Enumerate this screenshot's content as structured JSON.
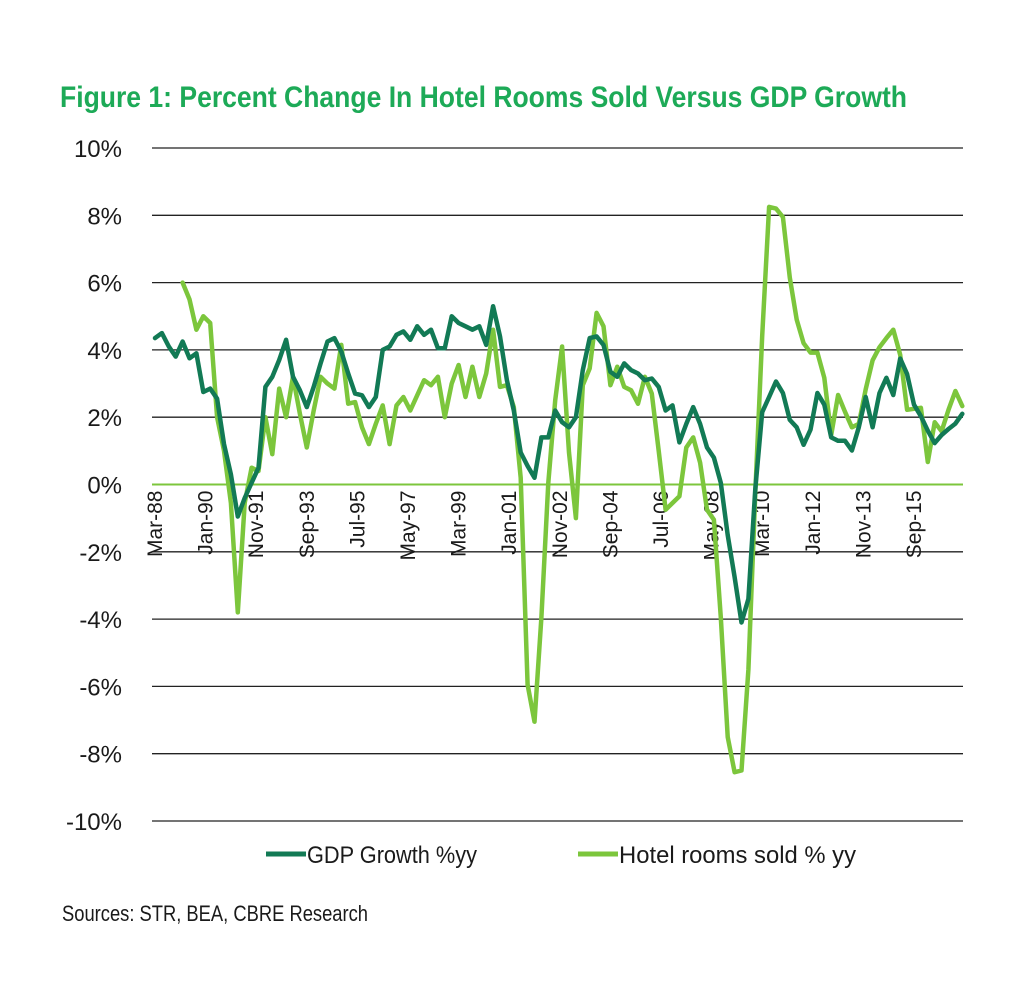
{
  "chart_data": {
    "type": "line",
    "title": "Figure 1: Percent Change In Hotel Rooms Sold Versus GDP Growth",
    "xlabel": "",
    "ylabel": "",
    "ylim": [
      -10,
      10
    ],
    "y_ticks": [
      "10%",
      "8%",
      "6%",
      "4%",
      "2%",
      "0%",
      "-2%",
      "-4%",
      "-6%",
      "-8%",
      "-10%"
    ],
    "y_tick_values": [
      10,
      8,
      6,
      4,
      2,
      0,
      -2,
      -4,
      -6,
      -8,
      -10
    ],
    "x_ticks": [
      "Mar-88",
      "Jan-90",
      "Nov-91",
      "Sep-93",
      "Jul-95",
      "May-97",
      "Mar-99",
      "Jan-01",
      "Nov-02",
      "Sep-04",
      "Jul-06",
      "May-08",
      "Mar-10",
      "Jan-12",
      "Nov-13",
      "Sep-15"
    ],
    "x_tick_dates": [
      "1988-03",
      "1990-01",
      "1991-11",
      "1993-09",
      "1995-07",
      "1997-05",
      "1999-03",
      "2001-01",
      "2002-11",
      "2004-09",
      "2006-07",
      "2008-05",
      "2010-03",
      "2012-01",
      "2013-11",
      "2015-09"
    ],
    "x_range": [
      "1988-03",
      "2017-06"
    ],
    "grid": "horizontal",
    "legend_position": "bottom",
    "colors": {
      "gdp": "#127a55",
      "hotel": "#7cc63c",
      "title": "#1daa57",
      "zero_line": "#7cc63c",
      "grid": "#222222"
    },
    "series": [
      {
        "name": "GDP Growth %yy",
        "color": "#127a55",
        "points": [
          [
            "1988-03",
            4.35
          ],
          [
            "1988-06",
            4.5
          ],
          [
            "1988-09",
            4.1
          ],
          [
            "1988-12",
            3.8
          ],
          [
            "1989-03",
            4.25
          ],
          [
            "1989-06",
            3.75
          ],
          [
            "1989-09",
            3.9
          ],
          [
            "1989-12",
            2.75
          ],
          [
            "1990-03",
            2.85
          ],
          [
            "1990-06",
            2.55
          ],
          [
            "1990-09",
            1.2
          ],
          [
            "1990-12",
            0.3
          ],
          [
            "1991-03",
            -0.95
          ],
          [
            "1991-06",
            -0.4
          ],
          [
            "1991-09",
            0.05
          ],
          [
            "1991-12",
            0.5
          ],
          [
            "1992-03",
            2.9
          ],
          [
            "1992-06",
            3.2
          ],
          [
            "1992-09",
            3.7
          ],
          [
            "1992-12",
            4.3
          ],
          [
            "1993-03",
            3.2
          ],
          [
            "1993-06",
            2.8
          ],
          [
            "1993-09",
            2.3
          ],
          [
            "1993-12",
            2.9
          ],
          [
            "1994-03",
            3.6
          ],
          [
            "1994-06",
            4.25
          ],
          [
            "1994-09",
            4.35
          ],
          [
            "1994-12",
            3.95
          ],
          [
            "1995-03",
            3.3
          ],
          [
            "1995-06",
            2.7
          ],
          [
            "1995-09",
            2.65
          ],
          [
            "1995-12",
            2.3
          ],
          [
            "1996-03",
            2.6
          ],
          [
            "1996-06",
            4.0
          ],
          [
            "1996-09",
            4.1
          ],
          [
            "1996-12",
            4.45
          ],
          [
            "1997-03",
            4.55
          ],
          [
            "1997-06",
            4.3
          ],
          [
            "1997-09",
            4.7
          ],
          [
            "1997-12",
            4.45
          ],
          [
            "1998-03",
            4.6
          ],
          [
            "1998-06",
            4.05
          ],
          [
            "1998-09",
            4.05
          ],
          [
            "1998-12",
            5.0
          ],
          [
            "1999-03",
            4.8
          ],
          [
            "1999-06",
            4.7
          ],
          [
            "1999-09",
            4.6
          ],
          [
            "1999-12",
            4.7
          ],
          [
            "2000-03",
            4.15
          ],
          [
            "2000-06",
            5.3
          ],
          [
            "2000-09",
            4.4
          ],
          [
            "2000-12",
            3.1
          ],
          [
            "2001-03",
            2.2
          ],
          [
            "2001-06",
            0.95
          ],
          [
            "2001-09",
            0.55
          ],
          [
            "2001-12",
            0.2
          ],
          [
            "2002-03",
            1.4
          ],
          [
            "2002-06",
            1.4
          ],
          [
            "2002-09",
            2.2
          ],
          [
            "2002-12",
            1.85
          ],
          [
            "2003-03",
            1.7
          ],
          [
            "2003-06",
            2.0
          ],
          [
            "2003-09",
            3.4
          ],
          [
            "2003-12",
            4.35
          ],
          [
            "2004-03",
            4.4
          ],
          [
            "2004-06",
            4.15
          ],
          [
            "2004-09",
            3.35
          ],
          [
            "2004-12",
            3.2
          ],
          [
            "2005-03",
            3.6
          ],
          [
            "2005-06",
            3.4
          ],
          [
            "2005-09",
            3.3
          ],
          [
            "2005-12",
            3.1
          ],
          [
            "2006-03",
            3.15
          ],
          [
            "2006-06",
            2.9
          ],
          [
            "2006-09",
            2.2
          ],
          [
            "2006-12",
            2.35
          ],
          [
            "2007-03",
            1.25
          ],
          [
            "2007-06",
            1.8
          ],
          [
            "2007-09",
            2.3
          ],
          [
            "2007-12",
            1.8
          ],
          [
            "2008-03",
            1.1
          ],
          [
            "2008-06",
            0.8
          ],
          [
            "2008-09",
            0.05
          ],
          [
            "2008-12",
            -1.5
          ],
          [
            "2009-03",
            -2.75
          ],
          [
            "2009-06",
            -4.1
          ],
          [
            "2009-09",
            -3.4
          ],
          [
            "2009-12",
            -0.13
          ],
          [
            "2010-03",
            2.15
          ],
          [
            "2010-06",
            2.6
          ],
          [
            "2010-09",
            3.06
          ],
          [
            "2010-12",
            2.72
          ],
          [
            "2011-03",
            1.92
          ],
          [
            "2011-06",
            1.7
          ],
          [
            "2011-09",
            1.18
          ],
          [
            "2011-12",
            1.63
          ],
          [
            "2012-03",
            2.72
          ],
          [
            "2012-06",
            2.37
          ],
          [
            "2012-09",
            1.4
          ],
          [
            "2012-12",
            1.3
          ],
          [
            "2013-03",
            1.3
          ],
          [
            "2013-06",
            1.01
          ],
          [
            "2013-09",
            1.7
          ],
          [
            "2013-12",
            2.6
          ],
          [
            "2014-03",
            1.7
          ],
          [
            "2014-06",
            2.72
          ],
          [
            "2014-09",
            3.17
          ],
          [
            "2014-12",
            2.66
          ],
          [
            "2015-03",
            3.74
          ],
          [
            "2015-06",
            3.28
          ],
          [
            "2015-09",
            2.37
          ],
          [
            "2015-12",
            2.03
          ],
          [
            "2016-03",
            1.6
          ],
          [
            "2016-06",
            1.23
          ],
          [
            "2016-09",
            1.47
          ],
          [
            "2016-12",
            1.65
          ],
          [
            "2017-03",
            1.81
          ],
          [
            "2017-06",
            2.1
          ]
        ]
      },
      {
        "name": "Hotel rooms sold % yy",
        "color": "#7cc63c",
        "points": [
          [
            "1989-03",
            6.0
          ],
          [
            "1989-06",
            5.5
          ],
          [
            "1989-09",
            4.6
          ],
          [
            "1989-12",
            5.0
          ],
          [
            "1990-03",
            4.8
          ],
          [
            "1990-06",
            2.0
          ],
          [
            "1990-09",
            1.0
          ],
          [
            "1990-12",
            -0.55
          ],
          [
            "1991-03",
            -3.8
          ],
          [
            "1991-06",
            -0.55
          ],
          [
            "1991-09",
            0.5
          ],
          [
            "1991-12",
            0.4
          ],
          [
            "1992-03",
            2.0
          ],
          [
            "1992-06",
            0.9
          ],
          [
            "1992-09",
            2.85
          ],
          [
            "1992-12",
            2.0
          ],
          [
            "1993-03",
            3.2
          ],
          [
            "1993-06",
            2.1
          ],
          [
            "1993-09",
            1.1
          ],
          [
            "1993-12",
            2.2
          ],
          [
            "1994-03",
            3.2
          ],
          [
            "1994-06",
            3.0
          ],
          [
            "1994-09",
            2.85
          ],
          [
            "1994-12",
            4.15
          ],
          [
            "1995-03",
            2.4
          ],
          [
            "1995-06",
            2.45
          ],
          [
            "1995-09",
            1.7
          ],
          [
            "1995-12",
            1.2
          ],
          [
            "1996-03",
            1.8
          ],
          [
            "1996-06",
            2.35
          ],
          [
            "1996-09",
            1.2
          ],
          [
            "1996-12",
            2.35
          ],
          [
            "1997-03",
            2.6
          ],
          [
            "1997-06",
            2.2
          ],
          [
            "1997-09",
            2.65
          ],
          [
            "1997-12",
            3.1
          ],
          [
            "1998-03",
            2.95
          ],
          [
            "1998-06",
            3.2
          ],
          [
            "1998-09",
            2.0
          ],
          [
            "1998-12",
            3.0
          ],
          [
            "1999-03",
            3.55
          ],
          [
            "1999-06",
            2.6
          ],
          [
            "1999-09",
            3.5
          ],
          [
            "1999-12",
            2.6
          ],
          [
            "2000-03",
            3.3
          ],
          [
            "2000-06",
            4.6
          ],
          [
            "2000-09",
            2.9
          ],
          [
            "2000-12",
            2.95
          ],
          [
            "2001-03",
            2.3
          ],
          [
            "2001-06",
            0.2
          ],
          [
            "2001-09",
            -5.95
          ],
          [
            "2001-12",
            -7.05
          ],
          [
            "2002-03",
            -3.95
          ],
          [
            "2002-06",
            0.05
          ],
          [
            "2002-09",
            2.5
          ],
          [
            "2002-12",
            4.1
          ],
          [
            "2003-03",
            0.95
          ],
          [
            "2003-06",
            -1.0
          ],
          [
            "2003-09",
            2.95
          ],
          [
            "2003-12",
            3.45
          ],
          [
            "2004-03",
            5.1
          ],
          [
            "2004-06",
            4.7
          ],
          [
            "2004-09",
            2.95
          ],
          [
            "2004-12",
            3.5
          ],
          [
            "2005-03",
            2.9
          ],
          [
            "2005-06",
            2.8
          ],
          [
            "2005-09",
            2.4
          ],
          [
            "2005-12",
            3.2
          ],
          [
            "2006-03",
            2.7
          ],
          [
            "2006-06",
            1.0
          ],
          [
            "2006-09",
            -0.75
          ],
          [
            "2006-12",
            -0.55
          ],
          [
            "2007-03",
            -0.35
          ],
          [
            "2007-06",
            1.1
          ],
          [
            "2007-09",
            1.4
          ],
          [
            "2007-12",
            0.65
          ],
          [
            "2008-03",
            -0.75
          ],
          [
            "2008-06",
            -1.05
          ],
          [
            "2008-09",
            -3.95
          ],
          [
            "2008-12",
            -7.5
          ],
          [
            "2009-03",
            -8.55
          ],
          [
            "2009-06",
            -8.5
          ],
          [
            "2009-09",
            -5.5
          ],
          [
            "2009-12",
            -0.25
          ],
          [
            "2010-03",
            4.42
          ],
          [
            "2010-06",
            8.25
          ],
          [
            "2010-09",
            8.2
          ],
          [
            "2010-12",
            7.95
          ],
          [
            "2011-03",
            6.15
          ],
          [
            "2011-06",
            4.9
          ],
          [
            "2011-09",
            4.2
          ],
          [
            "2011-12",
            3.92
          ],
          [
            "2012-03",
            3.92
          ],
          [
            "2012-06",
            3.17
          ],
          [
            "2012-09",
            1.47
          ],
          [
            "2012-12",
            2.66
          ],
          [
            "2013-03",
            2.16
          ],
          [
            "2013-06",
            1.7
          ],
          [
            "2013-09",
            1.8
          ],
          [
            "2013-12",
            2.83
          ],
          [
            "2014-03",
            3.69
          ],
          [
            "2014-06",
            4.08
          ],
          [
            "2014-09",
            4.35
          ],
          [
            "2014-12",
            4.6
          ],
          [
            "2015-03",
            3.85
          ],
          [
            "2015-06",
            2.22
          ],
          [
            "2015-09",
            2.25
          ],
          [
            "2015-12",
            2.28
          ],
          [
            "2016-03",
            0.67
          ],
          [
            "2016-06",
            1.85
          ],
          [
            "2016-09",
            1.58
          ],
          [
            "2016-12",
            2.22
          ],
          [
            "2017-03",
            2.78
          ],
          [
            "2017-06",
            2.33
          ]
        ]
      }
    ],
    "source": "Sources: STR, BEA, CBRE Research"
  }
}
